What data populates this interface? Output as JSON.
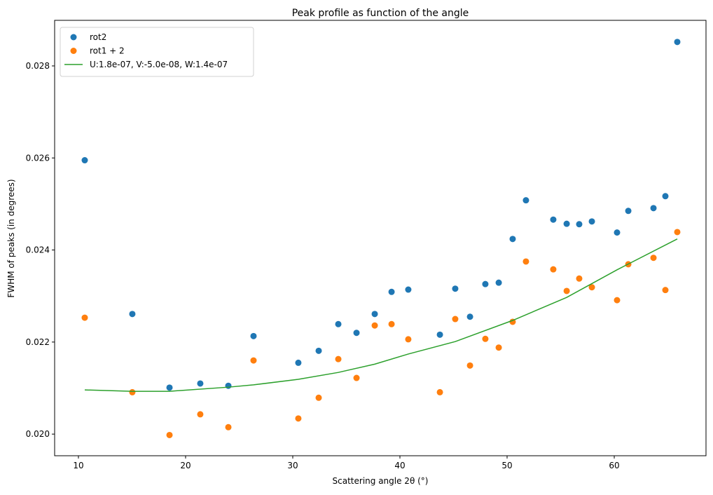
{
  "chart_data": {
    "type": "scatter",
    "title": "Peak profile as function of the angle",
    "xlabel": "Scattering angle 2θ (°)",
    "ylabel": "FWHM of peaks (in degrees)",
    "xlim": [
      7.78,
      68.56
    ],
    "ylim": [
      0.01953,
      0.02899
    ],
    "xticks": [
      10,
      20,
      30,
      40,
      50,
      60
    ],
    "yticks": [
      0.02,
      0.022,
      0.024,
      0.026,
      0.028
    ],
    "xtick_labels": [
      "10",
      "20",
      "30",
      "40",
      "50",
      "60"
    ],
    "ytick_labels": [
      "0.020",
      "0.022",
      "0.024",
      "0.026",
      "0.028"
    ],
    "grid": false,
    "legend_position": "top-left",
    "x": [
      10.59,
      15.03,
      18.5,
      21.37,
      23.99,
      26.34,
      30.52,
      32.42,
      34.25,
      35.95,
      37.65,
      39.22,
      40.78,
      43.73,
      45.16,
      46.54,
      47.97,
      49.22,
      50.52,
      51.76,
      54.31,
      55.56,
      56.73,
      57.91,
      60.26,
      61.31,
      63.66,
      64.77,
      65.88
    ],
    "series": [
      {
        "name": "rot2",
        "type": "scatter",
        "color": "#1f77b4",
        "values": [
          0.02595,
          0.02261,
          0.02101,
          0.0211,
          0.02105,
          0.02213,
          0.02155,
          0.02181,
          0.02239,
          0.0222,
          0.02261,
          0.02309,
          0.02314,
          0.02216,
          0.02316,
          0.02255,
          0.02326,
          0.02329,
          0.02424,
          0.02508,
          0.02466,
          0.02457,
          0.02456,
          0.02462,
          0.02438,
          0.02485,
          0.02491,
          0.02517,
          0.02852
        ]
      },
      {
        "name": "rot1 + 2",
        "type": "scatter",
        "color": "#ff7f0e",
        "values": [
          0.02253,
          0.02091,
          0.01998,
          0.02043,
          0.02015,
          0.0216,
          0.02034,
          0.02079,
          0.02163,
          0.02122,
          0.02236,
          0.02239,
          0.02206,
          0.02091,
          0.0225,
          0.02149,
          0.02207,
          0.02188,
          0.02244,
          0.02375,
          0.02358,
          0.02311,
          0.02338,
          0.02319,
          0.02291,
          0.02369,
          0.02383,
          0.02313,
          0.02439
        ]
      },
      {
        "name": "U:1.8e-07, V:-5.0e-08, W:1.4e-07",
        "type": "line",
        "color": "#2ca02c",
        "x": [
          10.59,
          15.03,
          18.5,
          23.99,
          26.34,
          30.52,
          34.25,
          37.65,
          40.78,
          45.16,
          50.52,
          55.56,
          60.26,
          65.88
        ],
        "values": [
          0.02096,
          0.02093,
          0.02093,
          0.02102,
          0.02107,
          0.02119,
          0.02134,
          0.02152,
          0.02174,
          0.02201,
          0.02247,
          0.02297,
          0.02357,
          0.02424
        ]
      }
    ]
  }
}
